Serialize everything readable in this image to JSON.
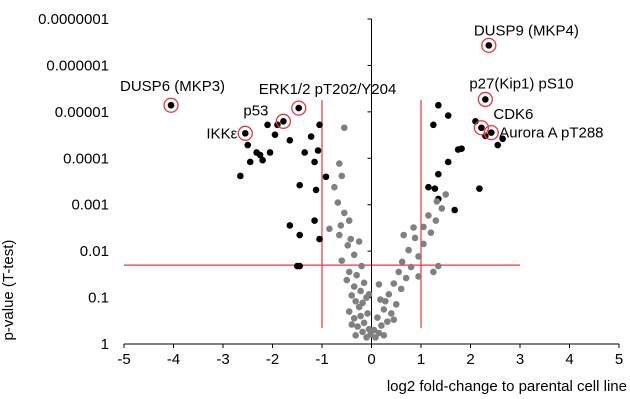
{
  "chart_data": {
    "type": "scatter",
    "xlabel": "log2 fold-change to parental cell line",
    "ylabel": "p-value (T-test)",
    "xlim": [
      -5,
      5
    ],
    "ylim": [
      1,
      1e-07
    ],
    "y_scale": "log (inverted)",
    "x_ticks": [
      "-5",
      "-4",
      "-3",
      "-2",
      "-1",
      "0",
      "1",
      "2",
      "3",
      "4",
      "5"
    ],
    "y_ticks": [
      "0.0000001",
      "0.000001",
      "0.00001",
      "0.0001",
      "0.001",
      "0.01",
      "0.1",
      "1"
    ],
    "grid": false,
    "threshold_lines": {
      "x": [
        -1,
        1
      ],
      "y": 0.02,
      "color": "#e8383d"
    },
    "colors": {
      "significant": "#000000",
      "not_significant": "#808080",
      "highlight_ring": "#e8383d"
    },
    "annotations": [
      {
        "text": "DUSP9 (MKP4)",
        "x": 2.37,
        "y": 3.7e-07
      },
      {
        "text": "DUSP6 (MKP3)",
        "x": -4.05,
        "y": 7.2e-06
      },
      {
        "text": "ERK1/2 pT202/Y204",
        "x": -1.47,
        "y": 8.3e-06
      },
      {
        "text": "p27(Kip1) pS10",
        "x": 2.3,
        "y": 5.4e-06
      },
      {
        "text": "p53",
        "x": -1.78,
        "y": 1.6e-05
      },
      {
        "text": "CDK6",
        "x": 2.22,
        "y": 2.2e-05
      },
      {
        "text": "IKKε",
        "x": -2.55,
        "y": 2.9e-05
      },
      {
        "text": "Aurora A pT288",
        "x": 2.42,
        "y": 2.8e-05
      }
    ],
    "series": [
      {
        "name": "",
        "color": "#000000",
        "points": [
          {
            "x": 2.37,
            "y": 3.7e-07
          },
          {
            "x": 2.3,
            "y": 5.4e-06
          },
          {
            "x": -4.05,
            "y": 7.2e-06
          },
          {
            "x": -1.47,
            "y": 8.3e-06
          },
          {
            "x": -1.78,
            "y": 1.6e-05
          },
          {
            "x": 2.22,
            "y": 2.2e-05
          },
          {
            "x": 2.42,
            "y": 2.8e-05
          },
          {
            "x": -2.55,
            "y": 2.9e-05
          },
          {
            "x": 1.35,
            "y": 7.2e-06
          },
          {
            "x": 1.55,
            "y": 1.2e-05
          },
          {
            "x": 2.1,
            "y": 1.6e-05
          },
          {
            "x": 2.55,
            "y": 5.2e-05
          },
          {
            "x": 2.3,
            "y": 3.3e-05
          },
          {
            "x": 2.65,
            "y": 3.8e-05
          },
          {
            "x": 1.75,
            "y": 6.5e-05
          },
          {
            "x": 1.25,
            "y": 1.9e-05
          },
          {
            "x": 1.82,
            "y": 6.2e-05
          },
          {
            "x": 1.55,
            "y": 0.00012
          },
          {
            "x": 1.35,
            "y": 0.00022
          },
          {
            "x": 1.28,
            "y": 0.00045
          },
          {
            "x": 1.15,
            "y": 0.00042
          },
          {
            "x": 1.35,
            "y": 0.00075
          },
          {
            "x": 2.18,
            "y": 0.00045
          },
          {
            "x": 1.68,
            "y": 0.0013
          },
          {
            "x": -1.05,
            "y": 1.9e-05
          },
          {
            "x": -1.22,
            "y": 3.4e-05
          },
          {
            "x": -2.1,
            "y": 1.9e-05
          },
          {
            "x": -1.9,
            "y": 1.9e-05
          },
          {
            "x": -1.95,
            "y": 3.1e-05
          },
          {
            "x": -1.65,
            "y": 4.1e-05
          },
          {
            "x": -1.35,
            "y": 7.5e-05
          },
          {
            "x": -1.08,
            "y": 6.8e-05
          },
          {
            "x": -1.15,
            "y": 0.00012
          },
          {
            "x": -2.5,
            "y": 5.2e-05
          },
          {
            "x": -2.32,
            "y": 7.5e-05
          },
          {
            "x": -2.05,
            "y": 7.5e-05
          },
          {
            "x": -2.25,
            "y": 8.5e-05
          },
          {
            "x": -2.2,
            "y": 0.00011
          },
          {
            "x": -2.45,
            "y": 0.00012
          },
          {
            "x": -2.65,
            "y": 0.00024
          },
          {
            "x": -1.12,
            "y": 0.00048
          },
          {
            "x": -0.92,
            "y": 0.00025
          },
          {
            "x": -1.45,
            "y": 0.00038
          },
          {
            "x": -1.15,
            "y": 0.0022
          },
          {
            "x": -1.65,
            "y": 0.0028
          },
          {
            "x": -1.45,
            "y": 0.0045
          },
          {
            "x": -1.05,
            "y": 0.0055
          },
          {
            "x": -1.5,
            "y": 0.021
          },
          {
            "x": -1.45,
            "y": 0.021
          }
        ]
      },
      {
        "name": "",
        "color": "#808080",
        "points": [
          {
            "x": -0.55,
            "y": 2.2e-05
          },
          {
            "x": -0.65,
            "y": 0.00013
          },
          {
            "x": -0.6,
            "y": 0.00024
          },
          {
            "x": -0.75,
            "y": 0.00042
          },
          {
            "x": -0.68,
            "y": 0.0009
          },
          {
            "x": -0.55,
            "y": 0.0015
          },
          {
            "x": -0.45,
            "y": 0.0022
          },
          {
            "x": -0.62,
            "y": 0.0028
          },
          {
            "x": -0.85,
            "y": 0.0033
          },
          {
            "x": -0.65,
            "y": 0.0045
          },
          {
            "x": -0.42,
            "y": 0.0055
          },
          {
            "x": -0.25,
            "y": 0.0062
          },
          {
            "x": -0.48,
            "y": 0.0075
          },
          {
            "x": -0.35,
            "y": 0.012
          },
          {
            "x": -0.6,
            "y": 0.016
          },
          {
            "x": -0.2,
            "y": 0.021
          },
          {
            "x": -0.45,
            "y": 0.028
          },
          {
            "x": -0.3,
            "y": 0.033
          },
          {
            "x": -0.5,
            "y": 0.042
          },
          {
            "x": -0.15,
            "y": 0.048
          },
          {
            "x": -0.35,
            "y": 0.058
          },
          {
            "x": -0.22,
            "y": 0.072
          },
          {
            "x": -0.4,
            "y": 0.09
          },
          {
            "x": -0.1,
            "y": 0.1
          },
          {
            "x": -0.32,
            "y": 0.12
          },
          {
            "x": -0.18,
            "y": 0.13
          },
          {
            "x": -0.25,
            "y": 0.16
          },
          {
            "x": -0.45,
            "y": 0.2
          },
          {
            "x": -0.08,
            "y": 0.22
          },
          {
            "x": -0.35,
            "y": 0.28
          },
          {
            "x": -0.15,
            "y": 0.35
          },
          {
            "x": -0.28,
            "y": 0.42
          },
          {
            "x": -0.05,
            "y": 0.48
          },
          {
            "x": -0.18,
            "y": 0.55
          },
          {
            "x": -0.02,
            "y": 0.62
          },
          {
            "x": -0.1,
            "y": 0.72
          },
          {
            "x": -0.32,
            "y": 0.65
          },
          {
            "x": 0.05,
            "y": 0.5
          },
          {
            "x": 0.15,
            "y": 0.58
          },
          {
            "x": 0.25,
            "y": 0.65
          },
          {
            "x": 0.08,
            "y": 0.72
          },
          {
            "x": 0.2,
            "y": 0.4
          },
          {
            "x": 0.32,
            "y": 0.33
          },
          {
            "x": 0.12,
            "y": 0.27
          },
          {
            "x": 0.4,
            "y": 0.22
          },
          {
            "x": 0.25,
            "y": 0.18
          },
          {
            "x": 0.5,
            "y": 0.14
          },
          {
            "x": 0.18,
            "y": 0.11
          },
          {
            "x": 0.35,
            "y": 0.085
          },
          {
            "x": 0.6,
            "y": 0.065
          },
          {
            "x": 0.45,
            "y": 0.05
          },
          {
            "x": 0.7,
            "y": 0.038
          },
          {
            "x": 0.55,
            "y": 0.028
          },
          {
            "x": 0.8,
            "y": 0.022
          },
          {
            "x": 0.62,
            "y": 0.017
          },
          {
            "x": 0.95,
            "y": 0.013
          },
          {
            "x": 0.75,
            "y": 0.0095
          },
          {
            "x": 1.05,
            "y": 0.007
          },
          {
            "x": 0.88,
            "y": 0.0052
          },
          {
            "x": 1.2,
            "y": 0.004
          },
          {
            "x": 1.05,
            "y": 0.003
          },
          {
            "x": 1.3,
            "y": 0.0022
          },
          {
            "x": 1.15,
            "y": 0.0017
          },
          {
            "x": 1.42,
            "y": 0.0012
          },
          {
            "x": 1.32,
            "y": 0.00085
          },
          {
            "x": 1.5,
            "y": 0.0006
          },
          {
            "x": 0.85,
            "y": 0.0031
          },
          {
            "x": 0.65,
            "y": 0.0045
          },
          {
            "x": 1.25,
            "y": 0.028
          },
          {
            "x": 0.95,
            "y": 0.035
          },
          {
            "x": 1.35,
            "y": 0.021
          },
          {
            "x": 0.15,
            "y": 0.052
          },
          {
            "x": -0.05,
            "y": 0.085
          },
          {
            "x": 0.28,
            "y": 0.12
          },
          {
            "x": -0.22,
            "y": 0.25
          },
          {
            "x": 0.45,
            "y": 0.3
          },
          {
            "x": -0.4,
            "y": 0.38
          }
        ]
      }
    ]
  }
}
